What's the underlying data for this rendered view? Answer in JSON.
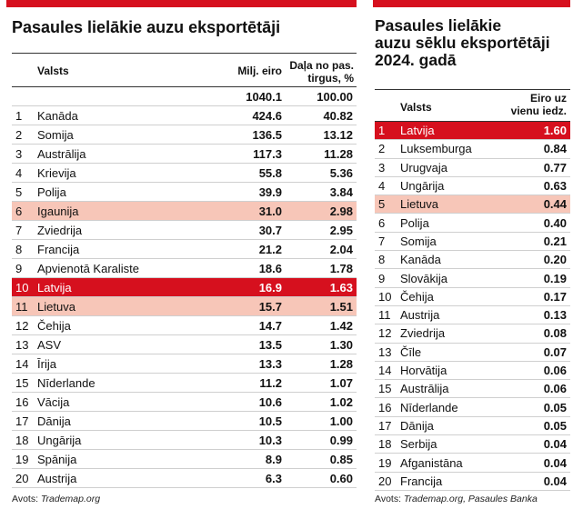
{
  "colors": {
    "accent": "#d6101e",
    "highlight_red": "#d6101e",
    "highlight_pink": "#f7c6b8"
  },
  "left": {
    "title": "Pasaules lielākie auzu eksportētāji",
    "headers": {
      "country": "Valsts",
      "value": "Milj. eiro",
      "share_line1": "Daļa no pas.",
      "share_line2": "tirgus, %"
    },
    "total": {
      "value": "1040.1",
      "share": "100.00"
    },
    "rows": [
      {
        "rank": "1",
        "country": "Kanāda",
        "value": "424.6",
        "share": "40.82",
        "hl": ""
      },
      {
        "rank": "2",
        "country": "Somija",
        "value": "136.5",
        "share": "13.12",
        "hl": ""
      },
      {
        "rank": "3",
        "country": "Austrālija",
        "value": "117.3",
        "share": "11.28",
        "hl": ""
      },
      {
        "rank": "4",
        "country": "Krievija",
        "value": "55.8",
        "share": "5.36",
        "hl": ""
      },
      {
        "rank": "5",
        "country": "Polija",
        "value": "39.9",
        "share": "3.84",
        "hl": ""
      },
      {
        "rank": "6",
        "country": "Igaunija",
        "value": "31.0",
        "share": "2.98",
        "hl": "pink"
      },
      {
        "rank": "7",
        "country": "Zviedrija",
        "value": "30.7",
        "share": "2.95",
        "hl": ""
      },
      {
        "rank": "8",
        "country": "Francija",
        "value": "21.2",
        "share": "2.04",
        "hl": ""
      },
      {
        "rank": "9",
        "country": "Apvienotā Karaliste",
        "value": "18.6",
        "share": "1.78",
        "hl": ""
      },
      {
        "rank": "10",
        "country": "Latvija",
        "value": "16.9",
        "share": "1.63",
        "hl": "red"
      },
      {
        "rank": "11",
        "country": "Lietuva",
        "value": "15.7",
        "share": "1.51",
        "hl": "pink"
      },
      {
        "rank": "12",
        "country": "Čehija",
        "value": "14.7",
        "share": "1.42",
        "hl": ""
      },
      {
        "rank": "13",
        "country": "ASV",
        "value": "13.5",
        "share": "1.30",
        "hl": ""
      },
      {
        "rank": "14",
        "country": "Īrija",
        "value": "13.3",
        "share": "1.28",
        "hl": ""
      },
      {
        "rank": "15",
        "country": "Nīderlande",
        "value": "11.2",
        "share": "1.07",
        "hl": ""
      },
      {
        "rank": "16",
        "country": "Vācija",
        "value": "10.6",
        "share": "1.02",
        "hl": ""
      },
      {
        "rank": "17",
        "country": "Dānija",
        "value": "10.5",
        "share": "1.00",
        "hl": ""
      },
      {
        "rank": "18",
        "country": "Ungārija",
        "value": "10.3",
        "share": "0.99",
        "hl": ""
      },
      {
        "rank": "19",
        "country": "Spānija",
        "value": "8.9",
        "share": "0.85",
        "hl": ""
      },
      {
        "rank": "20",
        "country": "Austrija",
        "value": "6.3",
        "share": "0.60",
        "hl": ""
      }
    ],
    "source_label": "Avots: ",
    "source": "Trademap.org"
  },
  "right": {
    "title_line1": "Pasaules lielākie",
    "title_line2": "auzu sēklu eksportētāji",
    "title_line3": "2024. gadā",
    "headers": {
      "country": "Valsts",
      "value_line1": "Eiro uz",
      "value_line2": "vienu iedz."
    },
    "rows": [
      {
        "rank": "1",
        "country": "Latvija",
        "value": "1.60",
        "hl": "red"
      },
      {
        "rank": "2",
        "country": "Luksemburga",
        "value": "0.84",
        "hl": ""
      },
      {
        "rank": "3",
        "country": "Urugvaja",
        "value": "0.77",
        "hl": ""
      },
      {
        "rank": "4",
        "country": "Ungārija",
        "value": "0.63",
        "hl": ""
      },
      {
        "rank": "5",
        "country": "Lietuva",
        "value": "0.44",
        "hl": "pink"
      },
      {
        "rank": "6",
        "country": "Polija",
        "value": "0.40",
        "hl": ""
      },
      {
        "rank": "7",
        "country": "Somija",
        "value": "0.21",
        "hl": ""
      },
      {
        "rank": "8",
        "country": "Kanāda",
        "value": "0.20",
        "hl": ""
      },
      {
        "rank": "9",
        "country": "Slovākija",
        "value": "0.19",
        "hl": ""
      },
      {
        "rank": "10",
        "country": "Čehija",
        "value": "0.17",
        "hl": ""
      },
      {
        "rank": "11",
        "country": "Austrija",
        "value": "0.13",
        "hl": ""
      },
      {
        "rank": "12",
        "country": "Zviedrija",
        "value": "0.08",
        "hl": ""
      },
      {
        "rank": "13",
        "country": "Čīle",
        "value": "0.07",
        "hl": ""
      },
      {
        "rank": "14",
        "country": "Horvātija",
        "value": "0.06",
        "hl": ""
      },
      {
        "rank": "15",
        "country": "Austrālija",
        "value": "0.06",
        "hl": ""
      },
      {
        "rank": "16",
        "country": "Nīderlande",
        "value": "0.05",
        "hl": ""
      },
      {
        "rank": "17",
        "country": "Dānija",
        "value": "0.05",
        "hl": ""
      },
      {
        "rank": "18",
        "country": "Serbija",
        "value": "0.04",
        "hl": ""
      },
      {
        "rank": "19",
        "country": "Afganistāna",
        "value": "0.04",
        "hl": ""
      },
      {
        "rank": "20",
        "country": "Francija",
        "value": "0.04",
        "hl": ""
      }
    ],
    "source_label": "Avots: ",
    "source": "Trademap.org, Pasaules Banka"
  }
}
